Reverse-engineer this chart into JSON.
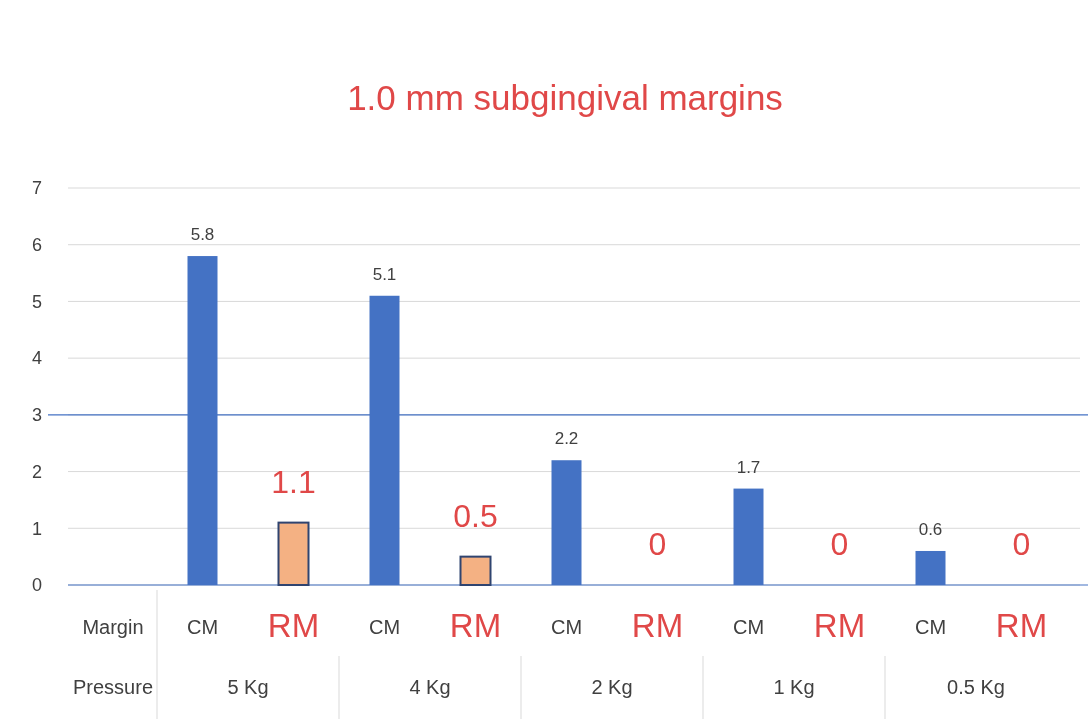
{
  "chart_data": {
    "type": "bar",
    "title": "1.0 mm subgingival margins",
    "categories": [
      "CM",
      "RM",
      "CM",
      "RM",
      "CM",
      "RM",
      "CM",
      "RM",
      "CM",
      "RM"
    ],
    "series": [
      {
        "color": "#4472c4",
        "values": [
          5.8,
          null,
          5.1,
          null,
          2.2,
          null,
          1.7,
          null,
          0.6,
          null
        ]
      },
      {
        "color": "#f4b183",
        "values": [
          null,
          1.1,
          null,
          0.5,
          null,
          0,
          null,
          0,
          null,
          0
        ]
      }
    ],
    "annotations": [
      "Margin",
      "Pressure",
      "5 Kg",
      "4 Kg",
      "2 Kg",
      "1 Kg",
      "0.5 Kg"
    ],
    "ylim": [
      0,
      7
    ],
    "yticks": [
      0,
      1,
      2,
      3,
      4,
      5,
      6,
      7
    ],
    "grid": "y",
    "data_labels": true,
    "ref_lines": [
      {
        "axis": "y",
        "value": 3,
        "color": "#4472c4"
      }
    ]
  }
}
